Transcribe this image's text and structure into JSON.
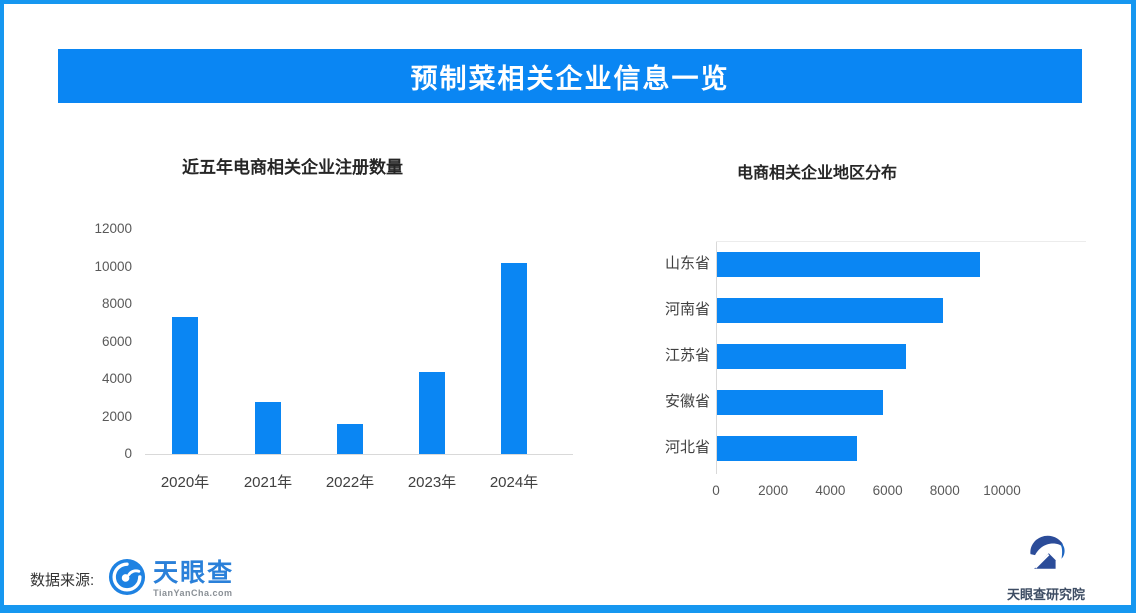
{
  "page": {
    "accent_color": "#0a86f3",
    "border_color": "#1697f0"
  },
  "header": {
    "title": "预制菜相关企业信息一览"
  },
  "chart_data": [
    {
      "type": "bar",
      "title": "近五年电商相关企业注册数量",
      "categories": [
        "2020年",
        "2021年",
        "2022年",
        "2023年",
        "2024年"
      ],
      "values": [
        7300,
        2800,
        1600,
        4400,
        10200
      ],
      "xlabel": "",
      "ylabel": "",
      "ylim": [
        0,
        12000
      ],
      "yticks": [
        12000,
        10000,
        8000,
        6000,
        4000,
        2000,
        0
      ],
      "grid": false,
      "legend": "none",
      "bar_color": "#0a86f3"
    },
    {
      "type": "bar",
      "orientation": "horizontal",
      "title": "电商相关企业地区分布",
      "categories": [
        "山东省",
        "河南省",
        "江苏省",
        "安徽省",
        "河北省"
      ],
      "values": [
        9200,
        7900,
        6600,
        5800,
        4900
      ],
      "xlabel": "",
      "ylabel": "",
      "xlim": [
        0,
        10000
      ],
      "xticks": [
        0,
        2000,
        4000,
        6000,
        8000,
        10000
      ],
      "grid": false,
      "legend": "none",
      "bar_color": "#0a86f3"
    }
  ],
  "footer": {
    "source_label": "数据来源:",
    "tyc_logo": {
      "name": "天眼查",
      "domain": "TianYanCha.com",
      "icon": "tianyancha-eye-icon"
    },
    "institute_logo": {
      "name": "天眼查研究院",
      "icon": "tianyancha-institute-icon"
    }
  }
}
